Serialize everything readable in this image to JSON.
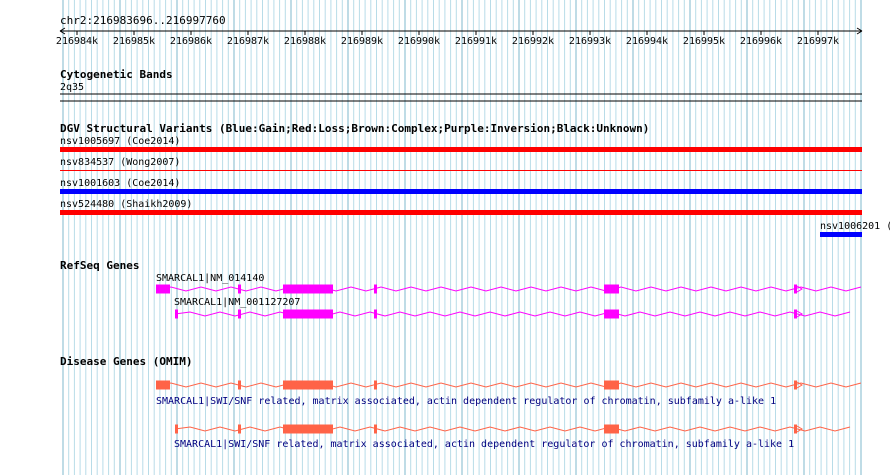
{
  "region_label": "chr2:216983696..216997760",
  "ruler": {
    "ticks": [
      "216984k",
      "216985k",
      "216986k",
      "216987k",
      "216988k",
      "216989k",
      "216990k",
      "216991k",
      "216992k",
      "216993k",
      "216994k",
      "216995k",
      "216996k",
      "216997k"
    ]
  },
  "tracks": {
    "cytoband": {
      "title": "Cytogenetic Bands",
      "band_label": "2q35"
    },
    "dgv": {
      "title": "DGV Structural Variants (Blue:Gain;Red:Loss;Brown:Complex;Purple:Inversion;Black:Unknown)",
      "variants": [
        {
          "label": "nsv1005697 (Coe2014)",
          "type": "loss",
          "color": "#ff0000"
        },
        {
          "label": "nsv834537 (Wong2007)",
          "type": "loss",
          "color": "#ff0000"
        },
        {
          "label": "nsv1001603 (Coe2014)",
          "type": "gain",
          "color": "#0000ff"
        },
        {
          "label": "nsv524480 (Shaikh2009)",
          "type": "loss",
          "color": "#ff0000"
        },
        {
          "label": "nsv1006201 (",
          "type": "gain",
          "color": "#0000ff"
        }
      ]
    },
    "refseq": {
      "title": "RefSeq Genes",
      "color": "#ff00ff",
      "transcripts": [
        {
          "label": "SMARCAL1|NM_014140"
        },
        {
          "label": "SMARCAL1|NM_001127207"
        }
      ]
    },
    "omim": {
      "title": "Disease Genes (OMIM)",
      "color": "#ff6347",
      "genes": [
        {
          "label": "SMARCAL1|SWI/SNF related, matrix associated, actin dependent regulator of chromatin, subfamily a-like 1"
        },
        {
          "label": "SMARCAL1|SWI/SNF related, matrix associated, actin dependent regulator of chromatin, subfamily a-like 1"
        }
      ]
    }
  },
  "colors": {
    "grid_minor": "#b8dce8",
    "grid_major": "#7fb8cc",
    "link_text": "#000080"
  }
}
